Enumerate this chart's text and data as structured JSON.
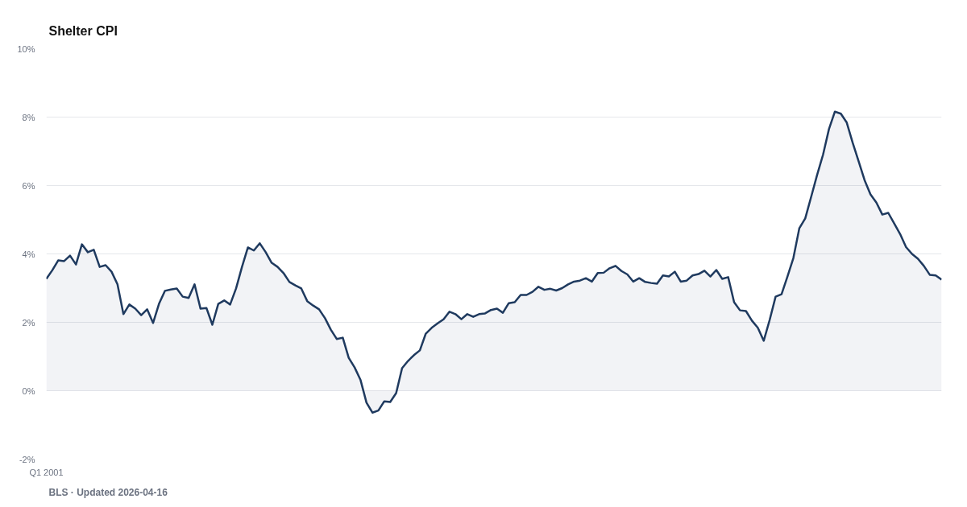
{
  "chart_data": {
    "type": "area",
    "title": "Shelter CPI",
    "annotations": [
      "BLS · Updated 2026-04-16"
    ],
    "categories": [
      "Q1 2001",
      null,
      null,
      null,
      null,
      null,
      null,
      null,
      null,
      null,
      null,
      null,
      null,
      null,
      null,
      null,
      null,
      null,
      null,
      null,
      null,
      null,
      null,
      null,
      null,
      null,
      null,
      null,
      null,
      null,
      null,
      null,
      null,
      null,
      null,
      null,
      null,
      null,
      null,
      null,
      null,
      null,
      null,
      null,
      null,
      null,
      null,
      null,
      null,
      null,
      null,
      null,
      null,
      null,
      null,
      null,
      null,
      null,
      null,
      null,
      null,
      null,
      null,
      null,
      null,
      null,
      null,
      null,
      null,
      null,
      null,
      null,
      null,
      null,
      null,
      null,
      null,
      null,
      null,
      null,
      null,
      null,
      null,
      null,
      null,
      null,
      null,
      null,
      null,
      null,
      null,
      null,
      null,
      null,
      null,
      null,
      null,
      null,
      null,
      null,
      null,
      null,
      null,
      null,
      null,
      null,
      null,
      null,
      null,
      null,
      null,
      null,
      null,
      null,
      null,
      null,
      null,
      null,
      null,
      null,
      null,
      null,
      null,
      null,
      null,
      null,
      null,
      null,
      null,
      null,
      null,
      null,
      null,
      null,
      null,
      null,
      null,
      null,
      null,
      null,
      null,
      null,
      null,
      null,
      null,
      null,
      null,
      null,
      null,
      null,
      null,
      null
    ],
    "series": [
      {
        "color": "#1f3a5f",
        "values": [
          3.27,
          3.52,
          3.81,
          3.79,
          3.95,
          3.69,
          4.28,
          4.05,
          4.12,
          3.62,
          3.67,
          3.48,
          3.11,
          2.24,
          2.52,
          2.4,
          2.21,
          2.38,
          1.98,
          2.54,
          2.92,
          2.96,
          2.99,
          2.75,
          2.71,
          3.11,
          2.4,
          2.42,
          1.93,
          2.54,
          2.64,
          2.52,
          2.99,
          3.62,
          4.19,
          4.1,
          4.31,
          4.05,
          3.74,
          3.62,
          3.44,
          3.18,
          3.08,
          2.99,
          2.62,
          2.49,
          2.38,
          2.12,
          1.78,
          1.51,
          1.55,
          0.96,
          0.68,
          0.31,
          -0.35,
          -0.64,
          -0.58,
          -0.31,
          -0.33,
          -0.07,
          0.66,
          0.87,
          1.04,
          1.18,
          1.67,
          1.84,
          1.97,
          2.09,
          2.31,
          2.24,
          2.09,
          2.24,
          2.16,
          2.24,
          2.26,
          2.36,
          2.4,
          2.28,
          2.56,
          2.59,
          2.8,
          2.8,
          2.89,
          3.04,
          2.95,
          2.98,
          2.93,
          3.0,
          3.11,
          3.19,
          3.22,
          3.29,
          3.19,
          3.44,
          3.45,
          3.58,
          3.65,
          3.5,
          3.4,
          3.19,
          3.29,
          3.18,
          3.15,
          3.13,
          3.37,
          3.34,
          3.48,
          3.19,
          3.22,
          3.37,
          3.41,
          3.51,
          3.34,
          3.53,
          3.27,
          3.32,
          2.59,
          2.35,
          2.33,
          2.05,
          1.84,
          1.46,
          2.07,
          2.75,
          2.82,
          3.34,
          3.88,
          4.75,
          5.04,
          5.67,
          6.31,
          6.9,
          7.65,
          8.16,
          8.1,
          7.84,
          7.25,
          6.71,
          6.16,
          5.74,
          5.5,
          5.15,
          5.2,
          4.89,
          4.58,
          4.2,
          4.0,
          3.86,
          3.65,
          3.39,
          3.37,
          3.25
        ]
      }
    ],
    "ylim": [
      -2,
      10
    ],
    "yticks": [
      {
        "value": -2,
        "label": "-2%"
      },
      {
        "value": 0,
        "label": "0%"
      },
      {
        "value": 2,
        "label": "2%"
      },
      {
        "value": 4,
        "label": "4%"
      },
      {
        "value": 6,
        "label": "6%"
      },
      {
        "value": 8,
        "label": "8%"
      },
      {
        "value": 10,
        "label": "10%"
      }
    ],
    "grid": "y",
    "marker": "none",
    "line_style": "solid"
  }
}
